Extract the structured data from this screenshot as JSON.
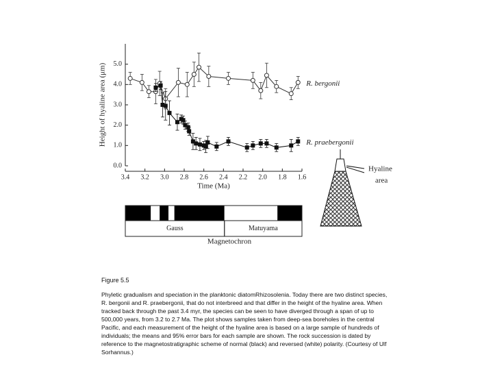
{
  "chart_data": {
    "type": "line",
    "x_label": "Time (Ma)",
    "y_label": "Height of hyaline area (μm)",
    "xlim": [
      3.4,
      1.6
    ],
    "xticks": [
      3.4,
      3.2,
      {
        "value": 3,
        "label": "3.0"
      },
      2.8,
      2.6,
      2.4,
      2.2,
      {
        "value": 2,
        "label": "2.0"
      },
      1.8,
      1.6
    ],
    "ylim": [
      0,
      6
    ],
    "yticks": [
      {
        "value": 0,
        "label": "0.0"
      },
      {
        "value": 1,
        "label": "1.0"
      },
      {
        "value": 2,
        "label": "2.0"
      },
      {
        "value": 3,
        "label": "3.0"
      },
      {
        "value": 4,
        "label": "4.0"
      },
      {
        "value": 5,
        "label": "5.0"
      }
    ],
    "series": [
      {
        "name": "R. bergonii",
        "color": "#333333",
        "marker": "open-circle",
        "x": [
          3.35,
          3.23,
          3.16,
          3.09,
          3.05,
          2.99,
          2.86,
          2.77,
          2.7,
          2.65,
          2.55,
          2.35,
          2.1,
          2.02,
          1.96,
          1.86,
          1.71,
          1.64
        ],
        "values": [
          4.3,
          4.1,
          3.65,
          3.65,
          4.05,
          3.3,
          4.1,
          4.0,
          4.5,
          4.85,
          4.4,
          4.3,
          4.2,
          3.7,
          4.45,
          3.9,
          3.55,
          4.1
        ],
        "errors": [
          0.3,
          0.4,
          0.3,
          0.6,
          0.6,
          0.5,
          0.7,
          0.6,
          0.6,
          0.7,
          0.5,
          0.3,
          0.4,
          0.4,
          0.6,
          0.3,
          0.3,
          0.3
        ]
      },
      {
        "name": "R. praebergonii",
        "color": "#111111",
        "marker": "filled-square",
        "x": [
          3.09,
          3.04,
          3.02,
          2.99,
          2.95,
          2.87,
          2.83,
          2.81,
          2.79,
          2.76,
          2.75,
          2.71,
          2.68,
          2.64,
          2.6,
          2.58,
          2.56,
          2.47,
          2.35,
          2.16,
          2.1,
          2.02,
          1.96,
          1.86,
          1.71,
          1.64
        ],
        "values": [
          3.85,
          3.95,
          3.0,
          2.95,
          2.6,
          2.15,
          2.3,
          2.25,
          2.0,
          1.9,
          1.7,
          1.2,
          1.1,
          1.05,
          1.0,
          0.95,
          1.15,
          0.95,
          1.2,
          0.9,
          1.0,
          1.1,
          1.1,
          0.9,
          1.0,
          1.2
        ],
        "errors": [
          0.2,
          0.2,
          0.6,
          0.7,
          0.6,
          0.4,
          0.2,
          0.2,
          0.2,
          0.2,
          0.2,
          0.4,
          0.3,
          0.3,
          0.2,
          0.3,
          0.3,
          0.2,
          0.2,
          0.2,
          0.2,
          0.2,
          0.2,
          0.2,
          0.3,
          0.2
        ]
      }
    ],
    "polarity": [
      {
        "start": 3.4,
        "end": 3.14,
        "color": "#000000"
      },
      {
        "start": 3.14,
        "end": 3.05,
        "color": "#ffffff"
      },
      {
        "start": 3.05,
        "end": 2.96,
        "color": "#000000"
      },
      {
        "start": 2.96,
        "end": 2.9,
        "color": "#ffffff"
      },
      {
        "start": 2.9,
        "end": 2.39,
        "color": "#000000"
      },
      {
        "start": 2.39,
        "end": 1.85,
        "color": "#ffffff"
      },
      {
        "start": 1.85,
        "end": 1.6,
        "color": "#000000"
      }
    ],
    "chrons": [
      {
        "name": "Gauss",
        "start": 3.4,
        "end": 2.39
      },
      {
        "name": "Matuyama",
        "start": 2.39,
        "end": 1.6
      }
    ],
    "chron_label": "Magnetochron",
    "illustration_label": [
      "Hyaline",
      "area"
    ]
  },
  "figure_label": "Figure 5.5",
  "caption": "Phyletic gradualism and speciation in the planktonic diatomRhizosolenia. Today there are two distinct species, R. bergonii and R. praebergonii, that do not interbreed and that differ in the height of the hyaline area. When tracked back through the past 3.4 myr, the species can be seen to have diverged through a span of up to 500,000 years, from 3.2  to 2.7 Ma. The plot shows samples taken from deep-sea boreholes in the central Pacific, and each measurement of the height of the hyaline area is based on a large sample of hundreds of individuals; the means and 95% error bars for each sample are shown. The rock succession is dated by reference to the magnetostratigraphic scheme of normal (black) and reversed (white) polarity. (Courtesy of Ulf Sorhannus.)"
}
